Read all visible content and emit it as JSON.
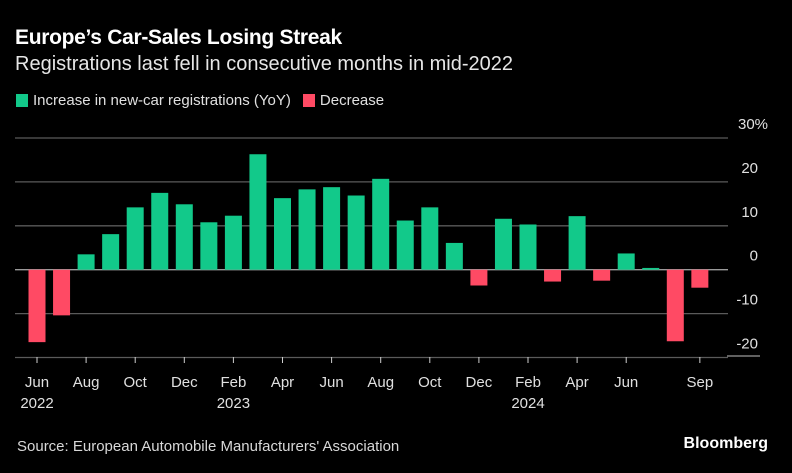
{
  "header": {
    "title": "Europe’s Car-Sales Losing Streak",
    "subtitle": "Registrations last fell in consecutive months in mid-2022"
  },
  "legend": {
    "increase_label": "Increase in new-car registrations (YoY)",
    "decrease_label": "Decrease",
    "increase_color": "#12c98a",
    "decrease_color": "#ff4a64"
  },
  "footer": {
    "source": "Source: European Automobile Manufacturers' Association",
    "brand": "Bloomberg"
  },
  "chart_data": {
    "type": "bar",
    "title": "Europe’s Car-Sales Losing Streak",
    "subtitle": "Registrations last fell in consecutive months in mid-2022",
    "xlabel": "",
    "ylabel": "",
    "ylim": [
      -20,
      30
    ],
    "y_ticks": [
      30,
      20,
      10,
      0,
      -10,
      -20
    ],
    "y_tick_labels": [
      "30%",
      "20",
      "10",
      "0",
      "-10",
      "-20"
    ],
    "grid": true,
    "legend_position": "top-left",
    "categories": [
      "Jun 2022",
      "Jul 2022",
      "Aug 2022",
      "Sep 2022",
      "Oct 2022",
      "Nov 2022",
      "Dec 2022",
      "Jan 2023",
      "Feb 2023",
      "Mar 2023",
      "Apr 2023",
      "May 2023",
      "Jun 2023",
      "Jul 2023",
      "Aug 2023",
      "Sep 2023",
      "Oct 2023",
      "Nov 2023",
      "Dec 2023",
      "Jan 2024",
      "Feb 2024",
      "Mar 2024",
      "Apr 2024",
      "May 2024",
      "Jun 2024",
      "Jul 2024",
      "Aug 2024",
      "Sep 2024"
    ],
    "values": [
      -16.5,
      -10.4,
      3.5,
      8.1,
      14.2,
      17.5,
      14.9,
      10.8,
      12.3,
      26.3,
      16.3,
      18.3,
      18.8,
      16.9,
      20.7,
      11.2,
      14.2,
      6.1,
      -3.6,
      11.6,
      10.3,
      -2.7,
      12.2,
      -2.5,
      3.7,
      0.4,
      -16.3,
      -4.1
    ],
    "x_tick_labels": [
      {
        "index": 0,
        "month": "Jun",
        "year": "2022"
      },
      {
        "index": 2,
        "month": "Aug",
        "year": ""
      },
      {
        "index": 4,
        "month": "Oct",
        "year": ""
      },
      {
        "index": 6,
        "month": "Dec",
        "year": ""
      },
      {
        "index": 8,
        "month": "Feb",
        "year": "2023"
      },
      {
        "index": 10,
        "month": "Apr",
        "year": ""
      },
      {
        "index": 12,
        "month": "Jun",
        "year": ""
      },
      {
        "index": 14,
        "month": "Aug",
        "year": ""
      },
      {
        "index": 16,
        "month": "Oct",
        "year": ""
      },
      {
        "index": 18,
        "month": "Dec",
        "year": ""
      },
      {
        "index": 20,
        "month": "Feb",
        "year": "2024"
      },
      {
        "index": 22,
        "month": "Apr",
        "year": ""
      },
      {
        "index": 24,
        "month": "Jun",
        "year": ""
      },
      {
        "index": 27,
        "month": "Sep",
        "year": ""
      }
    ],
    "series": [
      {
        "name": "Increase in new-car registrations (YoY)",
        "color": "#12c98a"
      },
      {
        "name": "Decrease",
        "color": "#ff4a64"
      }
    ]
  }
}
